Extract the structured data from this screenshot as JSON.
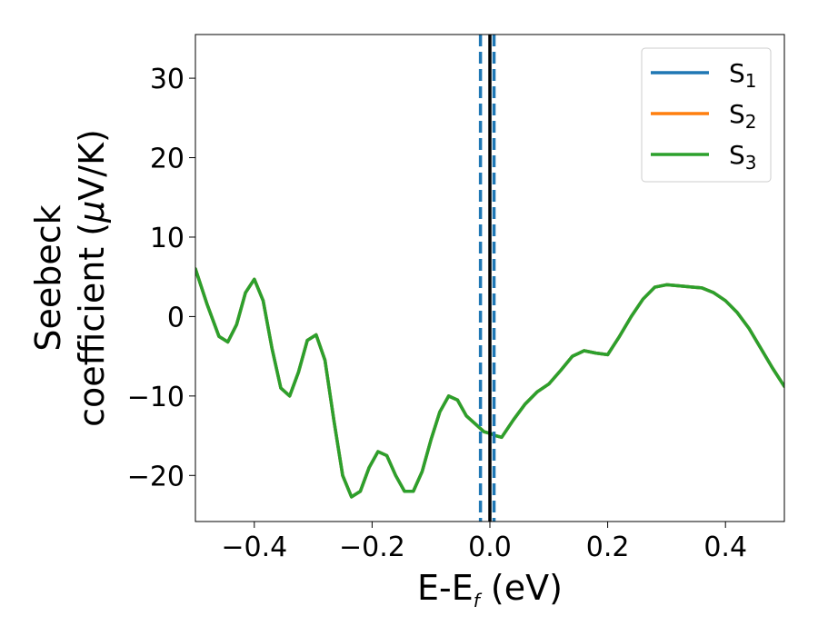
{
  "chart_data": {
    "type": "line",
    "xlabel": {
      "main": "E-E",
      "sub": "f",
      "unit": " (eV)"
    },
    "ylabel": {
      "line1": "Seebeck",
      "line2_a": "coefficient  (",
      "line2_mu": "μ",
      "line2_b": "V/K)"
    },
    "xlim": [
      -0.5,
      0.5
    ],
    "ylim": [
      -25.8,
      35.5
    ],
    "x_ticks": [
      -0.4,
      -0.2,
      0.0,
      0.2,
      0.4
    ],
    "x_tick_labels": [
      "−0.4",
      "−0.2",
      "0.0",
      "0.2",
      "0.4"
    ],
    "y_ticks": [
      -20,
      -10,
      0,
      10,
      20,
      30
    ],
    "y_tick_labels": [
      "−20",
      "−10",
      "0",
      "10",
      "20",
      "30"
    ],
    "grid": false,
    "legend_position": "top-right",
    "series": [
      {
        "name_main": "S",
        "name_sub": "1",
        "color": "#1f77b4",
        "x": [
          -0.5,
          -0.48,
          -0.46,
          -0.445,
          -0.43,
          -0.415,
          -0.4,
          -0.385,
          -0.37,
          -0.355,
          -0.34,
          -0.325,
          -0.31,
          -0.295,
          -0.28,
          -0.265,
          -0.25,
          -0.235,
          -0.22,
          -0.205,
          -0.19,
          -0.175,
          -0.16,
          -0.145,
          -0.13,
          -0.115,
          -0.1,
          -0.085,
          -0.07,
          -0.055,
          -0.04,
          -0.025,
          -0.01,
          0.0,
          0.01,
          0.02,
          0.04,
          0.06,
          0.08,
          0.1,
          0.12,
          0.14,
          0.16,
          0.18,
          0.2,
          0.22,
          0.24,
          0.26,
          0.28,
          0.3,
          0.33,
          0.36,
          0.38,
          0.4,
          0.42,
          0.44,
          0.46,
          0.48,
          0.5
        ],
        "y": [
          6.0,
          1.5,
          -2.5,
          -3.2,
          -1.0,
          3.0,
          4.7,
          2.0,
          -4.0,
          -9.0,
          -10.0,
          -7.0,
          -3.0,
          -2.3,
          -5.5,
          -13.0,
          -20.0,
          -22.7,
          -22.0,
          -19.0,
          -17.0,
          -17.5,
          -20.0,
          -22.0,
          -22.0,
          -19.5,
          -15.5,
          -12.0,
          -10.0,
          -10.5,
          -12.5,
          -13.5,
          -14.5,
          -14.7,
          -15.0,
          -15.2,
          -13.0,
          -11.0,
          -9.5,
          -8.5,
          -6.8,
          -5.0,
          -4.3,
          -4.6,
          -4.8,
          -2.5,
          0.0,
          2.2,
          3.7,
          4.0,
          3.8,
          3.6,
          3.0,
          2.0,
          0.5,
          -1.5,
          -4.0,
          -6.5,
          -8.8
        ]
      },
      {
        "name_main": "S",
        "name_sub": "2",
        "color": "#ff7f0e",
        "x": [
          -0.5,
          -0.48,
          -0.46,
          -0.445,
          -0.43,
          -0.415,
          -0.4,
          -0.385,
          -0.37,
          -0.355,
          -0.34,
          -0.325,
          -0.31,
          -0.295,
          -0.28,
          -0.265,
          -0.25,
          -0.235,
          -0.22,
          -0.205,
          -0.19,
          -0.175,
          -0.16,
          -0.145,
          -0.13,
          -0.115,
          -0.1,
          -0.085,
          -0.07,
          -0.055,
          -0.04,
          -0.025,
          -0.01,
          0.0,
          0.01,
          0.02,
          0.04,
          0.06,
          0.08,
          0.1,
          0.12,
          0.14,
          0.16,
          0.18,
          0.2,
          0.22,
          0.24,
          0.26,
          0.28,
          0.3,
          0.33,
          0.36,
          0.38,
          0.4,
          0.42,
          0.44,
          0.46,
          0.48,
          0.5
        ],
        "y": [
          6.0,
          1.5,
          -2.5,
          -3.2,
          -1.0,
          3.0,
          4.7,
          2.0,
          -4.0,
          -9.0,
          -10.0,
          -7.0,
          -3.0,
          -2.3,
          -5.5,
          -13.0,
          -20.0,
          -22.7,
          -22.0,
          -19.0,
          -17.0,
          -17.5,
          -20.0,
          -22.0,
          -22.0,
          -19.5,
          -15.5,
          -12.0,
          -10.0,
          -10.5,
          -12.5,
          -13.5,
          -14.5,
          -14.7,
          -15.0,
          -15.2,
          -13.0,
          -11.0,
          -9.5,
          -8.5,
          -6.8,
          -5.0,
          -4.3,
          -4.6,
          -4.8,
          -2.5,
          0.0,
          2.2,
          3.7,
          4.0,
          3.8,
          3.6,
          3.0,
          2.0,
          0.5,
          -1.5,
          -4.0,
          -6.5,
          -8.8
        ]
      },
      {
        "name_main": "S",
        "name_sub": "3",
        "color": "#2ca02c",
        "x": [
          -0.5,
          -0.48,
          -0.46,
          -0.445,
          -0.43,
          -0.415,
          -0.4,
          -0.385,
          -0.37,
          -0.355,
          -0.34,
          -0.325,
          -0.31,
          -0.295,
          -0.28,
          -0.265,
          -0.25,
          -0.235,
          -0.22,
          -0.205,
          -0.19,
          -0.175,
          -0.16,
          -0.145,
          -0.13,
          -0.115,
          -0.1,
          -0.085,
          -0.07,
          -0.055,
          -0.04,
          -0.025,
          -0.01,
          0.0,
          0.01,
          0.02,
          0.04,
          0.06,
          0.08,
          0.1,
          0.12,
          0.14,
          0.16,
          0.18,
          0.2,
          0.22,
          0.24,
          0.26,
          0.28,
          0.3,
          0.33,
          0.36,
          0.38,
          0.4,
          0.42,
          0.44,
          0.46,
          0.48,
          0.5
        ],
        "y": [
          6.0,
          1.5,
          -2.5,
          -3.2,
          -1.0,
          3.0,
          4.7,
          2.0,
          -4.0,
          -9.0,
          -10.0,
          -7.0,
          -3.0,
          -2.3,
          -5.5,
          -13.0,
          -20.0,
          -22.7,
          -22.0,
          -19.0,
          -17.0,
          -17.5,
          -20.0,
          -22.0,
          -22.0,
          -19.5,
          -15.5,
          -12.0,
          -10.0,
          -10.5,
          -12.5,
          -13.5,
          -14.5,
          -14.7,
          -15.0,
          -15.2,
          -13.0,
          -11.0,
          -9.5,
          -8.5,
          -6.8,
          -5.0,
          -4.3,
          -4.6,
          -4.8,
          -2.5,
          0.0,
          2.2,
          3.7,
          4.0,
          3.8,
          3.6,
          3.0,
          2.0,
          0.5,
          -1.5,
          -4.0,
          -6.5,
          -8.8
        ]
      }
    ],
    "vertical_lines": [
      {
        "x": -0.016,
        "style": "dashed",
        "color": "#1f77b4"
      },
      {
        "x": 0.0,
        "style": "solid",
        "color": "#000000"
      },
      {
        "x": 0.007,
        "style": "dashed",
        "color": "#1f77b4"
      }
    ]
  }
}
